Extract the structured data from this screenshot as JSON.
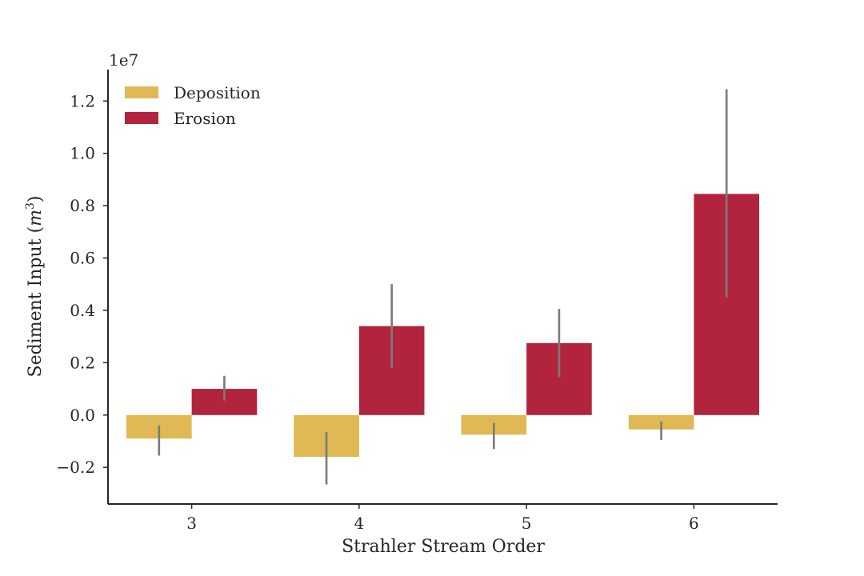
{
  "chart_data": {
    "type": "bar",
    "categories": [
      "3",
      "4",
      "5",
      "6"
    ],
    "series": [
      {
        "name": "Deposition",
        "color": "#e0b854",
        "values": [
          -0.09,
          -0.16,
          -0.075,
          -0.055
        ],
        "error_low": [
          -0.155,
          -0.265,
          -0.13,
          -0.095
        ],
        "error_high": [
          -0.04,
          -0.065,
          -0.03,
          -0.025
        ]
      },
      {
        "name": "Erosion",
        "color": "#b2243d",
        "values": [
          0.1,
          0.34,
          0.275,
          0.845
        ],
        "error_low": [
          0.055,
          0.18,
          0.145,
          0.45
        ],
        "error_high": [
          0.15,
          0.5,
          0.405,
          1.245
        ]
      }
    ],
    "xlabel": "Strahler Stream Order",
    "ylabel": "Sediment Input",
    "ylabel_unit_base": "m",
    "ylabel_unit_exp": "3",
    "y_offset_label": "1e7",
    "ylim": [
      -0.34,
      1.32
    ],
    "yticks": [
      -0.2,
      0.0,
      0.2,
      0.4,
      0.6,
      0.8,
      1.0,
      1.2
    ],
    "ytick_labels": [
      "−0.2",
      "0.0",
      "0.2",
      "0.4",
      "0.6",
      "0.8",
      "1.0",
      "1.2"
    ],
    "errorbar_color": "#7a7a7a",
    "grid": false,
    "legend_position": "top-left"
  }
}
